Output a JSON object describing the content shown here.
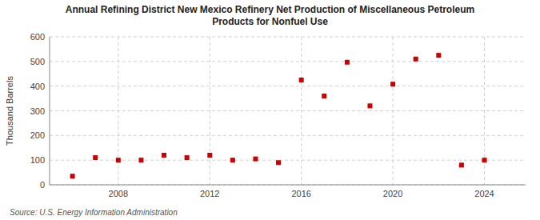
{
  "chart_data": {
    "type": "scatter",
    "title": "Annual Refining District New Mexico Refinery Net Production of Miscellaneous Petroleum\nProducts for Nonfuel Use",
    "ylabel": "Thousand Barrels",
    "source": "Source: U.S. Energy Information Administration",
    "x": [
      2006,
      2007,
      2008,
      2009,
      2010,
      2011,
      2012,
      2013,
      2014,
      2015,
      2016,
      2017,
      2018,
      2019,
      2020,
      2021,
      2022,
      2023,
      2024
    ],
    "values": [
      35,
      110,
      100,
      100,
      120,
      110,
      120,
      100,
      105,
      90,
      425,
      360,
      497,
      320,
      408,
      510,
      525,
      80,
      100
    ],
    "color": "#cc0000",
    "marker": "square",
    "xlim": [
      2005.0,
      2025.8
    ],
    "xticks": [
      2008,
      2012,
      2016,
      2020,
      2024
    ],
    "ylim": [
      0,
      600
    ],
    "yticks": [
      0,
      100,
      200,
      300,
      400,
      500,
      600
    ],
    "grid": true
  }
}
